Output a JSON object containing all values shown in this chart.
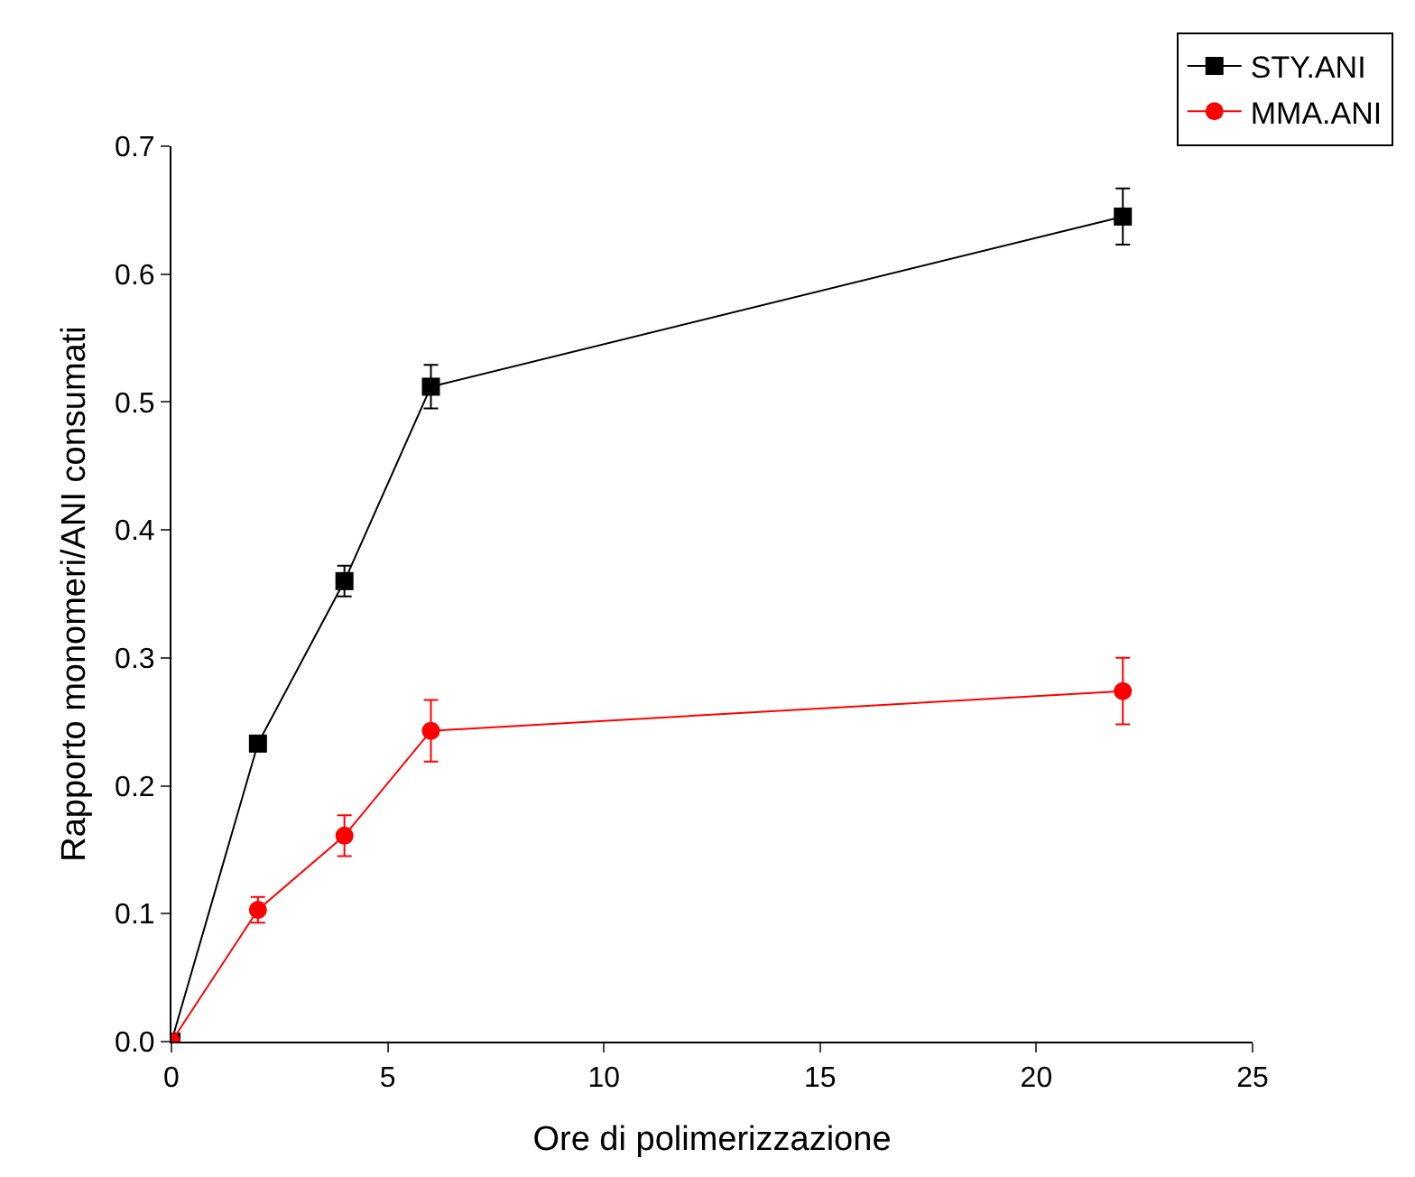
{
  "chart_data": {
    "type": "line",
    "xlabel": "Ore di polimerizzazione",
    "ylabel": "Rapporto monomeri/ANI consumati",
    "x": [
      0,
      2,
      4,
      6,
      22
    ],
    "series": [
      {
        "name": "STY.ANI",
        "color": "#000000",
        "marker": "square",
        "values": [
          0,
          0.233,
          0.36,
          0.512,
          0.645
        ],
        "errors": [
          null,
          0.006,
          0.012,
          0.017,
          0.022
        ]
      },
      {
        "name": "MMA.ANI",
        "color": "#ff0000",
        "marker": "circle",
        "values": [
          0,
          0.103,
          0.161,
          0.243,
          0.274
        ],
        "errors": [
          null,
          0.01,
          0.016,
          0.024,
          0.026
        ]
      }
    ],
    "xlim": [
      0,
      25
    ],
    "xticks": [
      0,
      5,
      10,
      15,
      20,
      25
    ],
    "ylim": [
      0,
      0.7
    ],
    "yticks": [
      {
        "value": 0,
        "label": "0.0"
      },
      0.1,
      0.2,
      0.3,
      0.4,
      0.5,
      0.6,
      0.7
    ],
    "grid": false,
    "legend": "top right",
    "line_style": "solid"
  }
}
